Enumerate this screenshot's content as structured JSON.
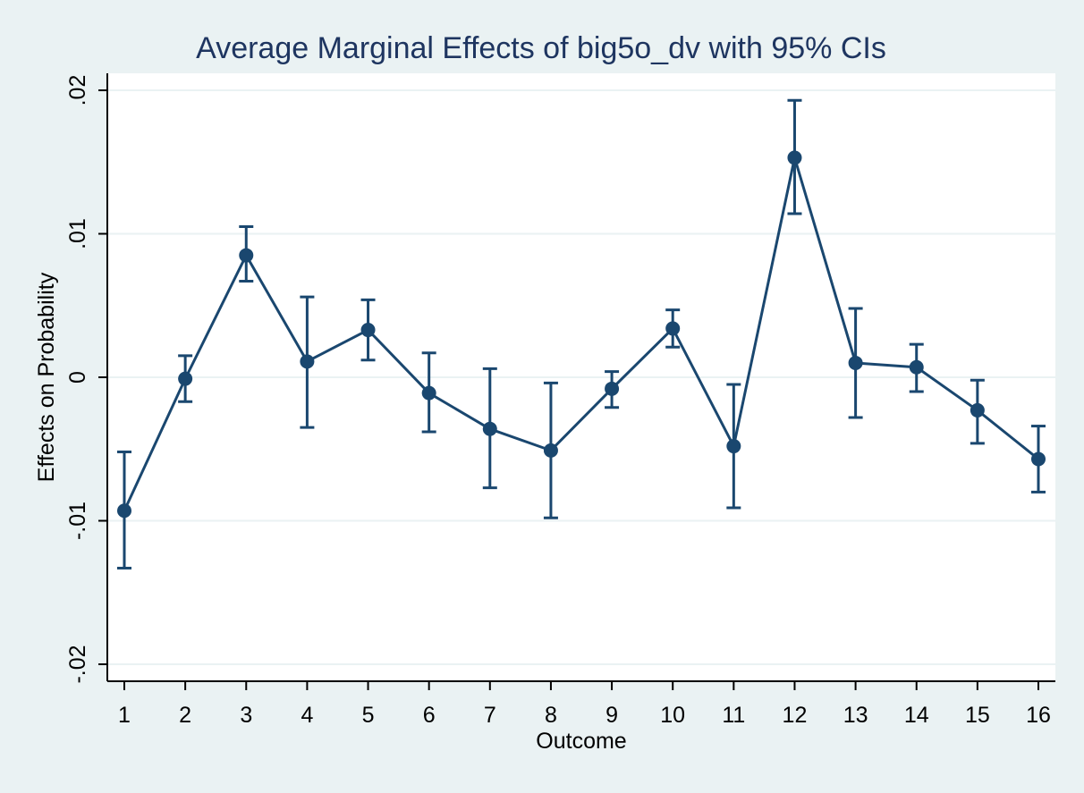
{
  "chart_data": {
    "type": "line",
    "title": "Average Marginal Effects of big5o_dv with 95% CIs",
    "xlabel": "Outcome",
    "ylabel": "Effects on Probability",
    "x": [
      1,
      2,
      3,
      4,
      5,
      6,
      7,
      8,
      9,
      10,
      11,
      12,
      13,
      14,
      15,
      16
    ],
    "x_tick_labels": [
      "1",
      "2",
      "3",
      "4",
      "5",
      "6",
      "7",
      "8",
      "9",
      "10",
      "11",
      "12",
      "13",
      "14",
      "15",
      "16"
    ],
    "values": [
      -0.0093,
      -0.0001,
      0.0085,
      0.0011,
      0.0033,
      -0.0011,
      -0.0036,
      -0.0051,
      -0.0008,
      0.0034,
      -0.0048,
      0.0153,
      0.001,
      0.0007,
      -0.0023,
      -0.0057
    ],
    "ci_upper": [
      -0.0052,
      0.0015,
      0.0105,
      0.0056,
      0.0054,
      0.0017,
      0.0006,
      -0.0004,
      0.0004,
      0.0047,
      -0.0005,
      0.0193,
      0.0048,
      0.0023,
      -0.0002,
      -0.0034
    ],
    "ci_lower": [
      -0.0133,
      -0.0017,
      0.0067,
      -0.0035,
      0.0012,
      -0.0038,
      -0.0077,
      -0.0098,
      -0.0021,
      0.0021,
      -0.0091,
      0.0114,
      -0.0028,
      -0.001,
      -0.0046,
      -0.008
    ],
    "ylim": [
      -0.02,
      0.02
    ],
    "y_ticks": [
      -0.02,
      -0.01,
      0,
      0.01,
      0.02
    ],
    "y_tick_labels": [
      "-.02",
      "-.01",
      "0",
      ".01",
      ".02"
    ],
    "grid": true,
    "colors": {
      "background": "#eaf2f3",
      "plot_background": "#ffffff",
      "series": "#1a476f",
      "grid": "#eaf2f3",
      "axis": "#000000",
      "title": "#1e3560"
    }
  }
}
